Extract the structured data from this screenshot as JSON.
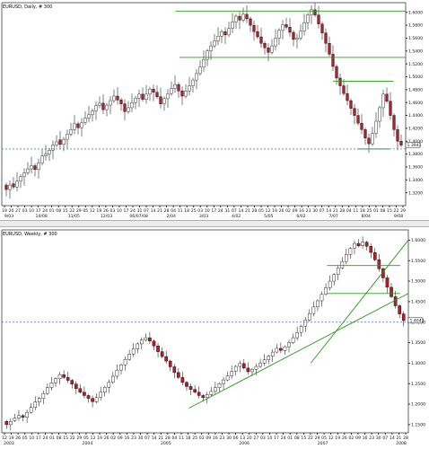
{
  "colors": {
    "up": "#000000",
    "down": "#b0202a",
    "resistance": "#2a9a1a",
    "reference": "#4a6cf0",
    "background": "#ffffff"
  },
  "chart_data": [
    {
      "type": "candlestick",
      "title": "EURUSD, Daily, # 300",
      "ylim": [
        1.3,
        1.615
      ],
      "yticks": [
        "1.6000",
        "1.5800",
        "1.5600",
        "1.5400",
        "1.5200",
        "1.5000",
        "1.4800",
        "1.4600",
        "1.4400",
        "1.4200",
        "1.4000",
        "1.3800",
        "1.3600",
        "1.3400",
        "1.3200"
      ],
      "ytick_values": [
        1.6,
        1.58,
        1.56,
        1.54,
        1.52,
        1.5,
        1.48,
        1.46,
        1.44,
        1.42,
        1.4,
        1.38,
        1.36,
        1.34,
        1.32
      ],
      "xtick_row1": [
        "19",
        "20",
        "27",
        "03",
        "10",
        "17",
        "24",
        "01",
        "08",
        "15",
        "22",
        "29",
        "05",
        "12",
        "19",
        "26",
        "03",
        "10",
        "17",
        "24",
        "31",
        "07",
        "14",
        "21",
        "28",
        "04",
        "11",
        "18",
        "25",
        "03",
        "10",
        "17",
        "24",
        "31",
        "07",
        "14",
        "21",
        "28",
        "05",
        "12",
        "19",
        "26",
        "02",
        "09",
        "16",
        "23",
        "30",
        "07",
        "14",
        "21",
        "28",
        "04",
        "11",
        "18",
        "25",
        "01",
        "08",
        "15",
        "22",
        "29"
      ],
      "xtick_row2": [
        "9/03",
        "10/08",
        "11/05",
        "12/03",
        "06/07/08",
        "2/04",
        "3/03",
        "4/02",
        "5/05",
        "6/02",
        "7/07",
        "8/04",
        "9/08"
      ],
      "last_price": "1.3941",
      "levels": [
        1.602,
        1.53,
        1.493,
        1.388
      ],
      "reference_level": 1.388,
      "ohlc_close": [
        1.325,
        1.332,
        1.329,
        1.338,
        1.345,
        1.351,
        1.357,
        1.362,
        1.356,
        1.366,
        1.377,
        1.38,
        1.386,
        1.394,
        1.399,
        1.395,
        1.403,
        1.411,
        1.418,
        1.427,
        1.421,
        1.429,
        1.436,
        1.441,
        1.447,
        1.455,
        1.459,
        1.449,
        1.456,
        1.463,
        1.47,
        1.464,
        1.458,
        1.446,
        1.452,
        1.46,
        1.467,
        1.473,
        1.465,
        1.473,
        1.481,
        1.476,
        1.469,
        1.458,
        1.466,
        1.474,
        1.482,
        1.488,
        1.478,
        1.47,
        1.478,
        1.486,
        1.495,
        1.505,
        1.515,
        1.527,
        1.54,
        1.548,
        1.556,
        1.563,
        1.57,
        1.565,
        1.575,
        1.585,
        1.594,
        1.588,
        1.597,
        1.59,
        1.58,
        1.57,
        1.562,
        1.552,
        1.545,
        1.538,
        1.548,
        1.56,
        1.572,
        1.581,
        1.577,
        1.569,
        1.558,
        1.56,
        1.571,
        1.584,
        1.596,
        1.604,
        1.596,
        1.582,
        1.568,
        1.552,
        1.535,
        1.516,
        1.498,
        1.486,
        1.474,
        1.463,
        1.451,
        1.44,
        1.428,
        1.418,
        1.405,
        1.396,
        1.412,
        1.431,
        1.452,
        1.473,
        1.462,
        1.44,
        1.418,
        1.4,
        1.394
      ],
      "ohlc_open": [
        1.332,
        1.325,
        1.334,
        1.329,
        1.338,
        1.345,
        1.351,
        1.357,
        1.362,
        1.356,
        1.366,
        1.377,
        1.38,
        1.386,
        1.394,
        1.402,
        1.395,
        1.403,
        1.411,
        1.418,
        1.427,
        1.421,
        1.429,
        1.436,
        1.441,
        1.447,
        1.455,
        1.459,
        1.449,
        1.456,
        1.463,
        1.47,
        1.464,
        1.458,
        1.446,
        1.452,
        1.46,
        1.467,
        1.473,
        1.465,
        1.473,
        1.481,
        1.476,
        1.469,
        1.458,
        1.466,
        1.474,
        1.482,
        1.488,
        1.478,
        1.47,
        1.478,
        1.486,
        1.495,
        1.505,
        1.515,
        1.527,
        1.54,
        1.548,
        1.556,
        1.563,
        1.57,
        1.565,
        1.575,
        1.585,
        1.594,
        1.588,
        1.597,
        1.59,
        1.58,
        1.57,
        1.562,
        1.552,
        1.545,
        1.538,
        1.548,
        1.56,
        1.572,
        1.581,
        1.577,
        1.569,
        1.558,
        1.56,
        1.571,
        1.584,
        1.596,
        1.604,
        1.596,
        1.582,
        1.568,
        1.552,
        1.535,
        1.516,
        1.498,
        1.486,
        1.474,
        1.463,
        1.451,
        1.44,
        1.428,
        1.418,
        1.405,
        1.396,
        1.412,
        1.431,
        1.452,
        1.473,
        1.462,
        1.44,
        1.418,
        1.4
      ]
    },
    {
      "type": "candlestick",
      "title": "EURUSD, Weekly, # 300",
      "ylim": [
        1.13,
        1.625
      ],
      "yticks": [
        "1.6000",
        "1.5500",
        "1.5000",
        "1.4500",
        "1.4000",
        "1.3500",
        "1.3000",
        "1.2500",
        "1.2000",
        "1.1500"
      ],
      "ytick_values": [
        1.6,
        1.55,
        1.5,
        1.45,
        1.4,
        1.35,
        1.3,
        1.25,
        1.2,
        1.15
      ],
      "xtick_row1": [
        "12",
        "19",
        "26",
        "05",
        "10",
        "17",
        "24",
        "01",
        "08",
        "15",
        "22",
        "29",
        "05",
        "12",
        "19",
        "26",
        "02",
        "09",
        "16",
        "23",
        "30",
        "07",
        "14",
        "21",
        "28",
        "04",
        "11",
        "18",
        "25",
        "02",
        "09",
        "16",
        "23",
        "30",
        "06",
        "13",
        "20",
        "27",
        "03",
        "10",
        "17",
        "24",
        "01",
        "08",
        "15",
        "22",
        "29",
        "05",
        "12",
        "19",
        "26",
        "02",
        "09",
        "16",
        "23",
        "30",
        "07",
        "14",
        "21",
        "28"
      ],
      "xtick_row2": [
        "2003",
        "2004",
        "2005",
        "2006",
        "2007",
        "2008"
      ],
      "last_price": "1.4042",
      "levels": [
        1.538,
        1.47
      ],
      "reference_level": 1.4,
      "ohlc_close": [
        1.15,
        1.158,
        1.166,
        1.172,
        1.168,
        1.18,
        1.192,
        1.205,
        1.214,
        1.226,
        1.24,
        1.252,
        1.262,
        1.272,
        1.265,
        1.258,
        1.249,
        1.238,
        1.229,
        1.221,
        1.214,
        1.206,
        1.216,
        1.229,
        1.241,
        1.253,
        1.268,
        1.283,
        1.296,
        1.309,
        1.322,
        1.335,
        1.347,
        1.356,
        1.362,
        1.354,
        1.342,
        1.328,
        1.316,
        1.305,
        1.291,
        1.277,
        1.265,
        1.253,
        1.243,
        1.236,
        1.229,
        1.221,
        1.216,
        1.223,
        1.231,
        1.24,
        1.25,
        1.259,
        1.269,
        1.28,
        1.292,
        1.299,
        1.288,
        1.279,
        1.285,
        1.292,
        1.3,
        1.308,
        1.317,
        1.327,
        1.336,
        1.331,
        1.34,
        1.35,
        1.362,
        1.375,
        1.39,
        1.405,
        1.421,
        1.437,
        1.452,
        1.468,
        1.484,
        1.5,
        1.516,
        1.532,
        1.548,
        1.565,
        1.58,
        1.592,
        1.586,
        1.595,
        1.585,
        1.57,
        1.552,
        1.53,
        1.508,
        1.485,
        1.462,
        1.44,
        1.42,
        1.404
      ],
      "ohlc_open": [
        1.158,
        1.15,
        1.16,
        1.166,
        1.172,
        1.168,
        1.18,
        1.192,
        1.205,
        1.214,
        1.226,
        1.24,
        1.252,
        1.262,
        1.272,
        1.265,
        1.258,
        1.249,
        1.238,
        1.229,
        1.221,
        1.214,
        1.206,
        1.216,
        1.229,
        1.241,
        1.253,
        1.268,
        1.283,
        1.296,
        1.309,
        1.322,
        1.335,
        1.347,
        1.356,
        1.362,
        1.354,
        1.342,
        1.328,
        1.316,
        1.305,
        1.291,
        1.277,
        1.265,
        1.253,
        1.243,
        1.236,
        1.229,
        1.221,
        1.216,
        1.223,
        1.231,
        1.24,
        1.25,
        1.259,
        1.269,
        1.28,
        1.292,
        1.299,
        1.288,
        1.279,
        1.285,
        1.292,
        1.3,
        1.308,
        1.317,
        1.327,
        1.336,
        1.331,
        1.34,
        1.35,
        1.362,
        1.375,
        1.39,
        1.405,
        1.421,
        1.437,
        1.452,
        1.468,
        1.484,
        1.5,
        1.516,
        1.532,
        1.548,
        1.565,
        1.58,
        1.592,
        1.586,
        1.595,
        1.585,
        1.57,
        1.552,
        1.53,
        1.508,
        1.485,
        1.462,
        1.44,
        1.42
      ]
    }
  ]
}
